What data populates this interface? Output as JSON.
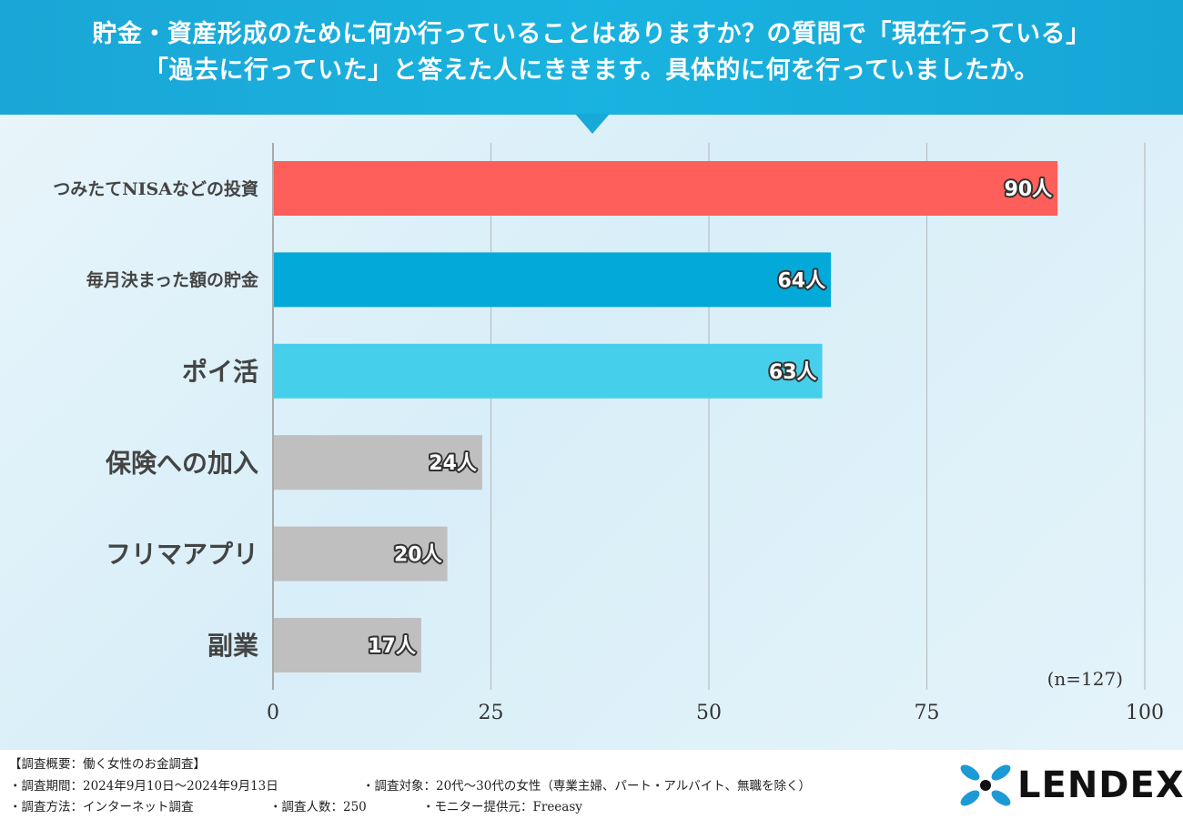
{
  "header": {
    "line1": "貯金・資産形成のために何か行っていることはありますか？の質問で「現在行っている」",
    "line2": "「過去に行っていた」と答えた人にききます。具体的に何を行っていましたか。"
  },
  "chart_data": {
    "type": "bar",
    "orientation": "horizontal",
    "categories": [
      "つみたてNISAなどの投資",
      "毎月決まった額の貯金",
      "ポイ活",
      "保険への加入",
      "フリマアプリ",
      "副業"
    ],
    "values": [
      90,
      64,
      63,
      24,
      20,
      17
    ],
    "value_labels": [
      "90人",
      "64人",
      "63人",
      "24人",
      "20人",
      "17人"
    ],
    "bar_colors": [
      "#fe5f5a",
      "#03a9d9",
      "#46cfea",
      "#c0bfbf",
      "#c0bfbf",
      "#c0bfbf"
    ],
    "xlim": [
      0,
      100
    ],
    "xticks": [
      0,
      25,
      50,
      75,
      100
    ],
    "grid": true,
    "note": "(n=127)"
  },
  "footer": {
    "summary": "【調査概要：働く女性のお金調査】",
    "period": "・調査期間：2024年9月10日〜2024年9月13日",
    "target": "・調査対象：20代〜30代の女性（専業主婦、パート・アルバイト、無職を除く）",
    "method": "・調査方法：インターネット調査",
    "count": "・調査人数：250",
    "provider": "・モニター提供元：Freeasy"
  },
  "logo": {
    "text": "LENDEX",
    "color": "#1c9ad6"
  }
}
